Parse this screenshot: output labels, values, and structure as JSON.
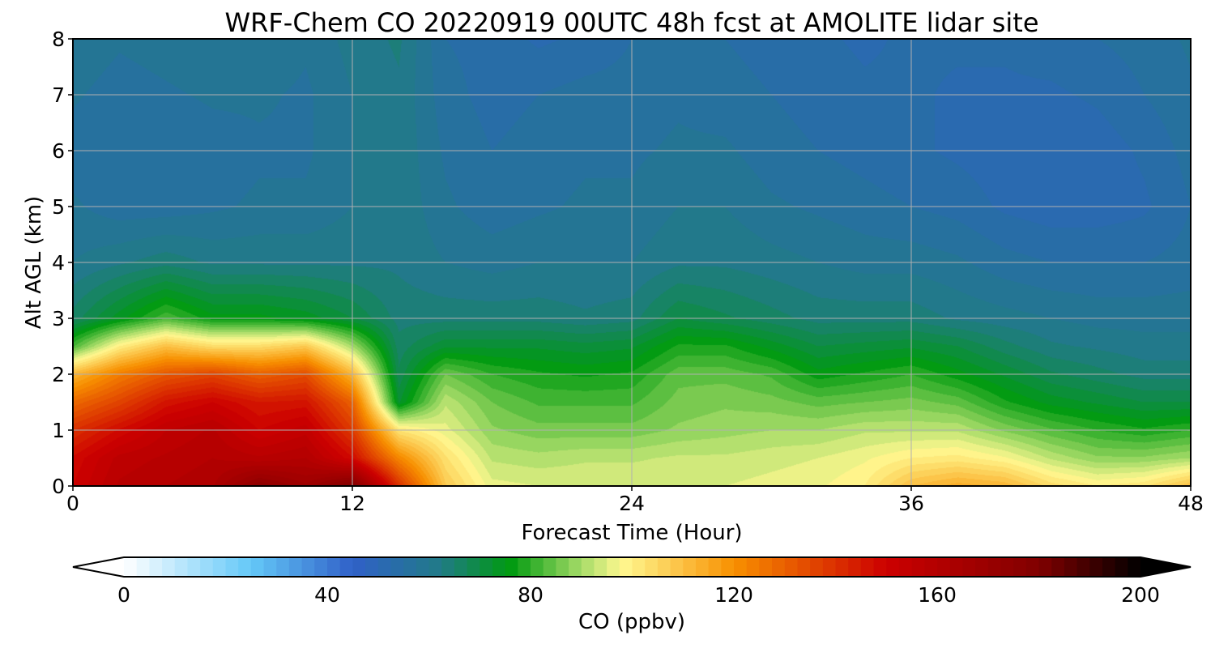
{
  "chart_data": {
    "type": "heatmap",
    "title": "WRF-Chem CO  20220919 00UTC 48h fcst at AMOLITE lidar site",
    "xlabel": "Forecast Time (Hour)",
    "ylabel": "Alt AGL (km)",
    "xlim": [
      0,
      48
    ],
    "ylim": [
      0,
      8
    ],
    "x_ticks": [
      0,
      12,
      24,
      36,
      48
    ],
    "y_ticks": [
      0,
      1,
      2,
      3,
      4,
      5,
      6,
      7,
      8
    ],
    "grid": true,
    "hours": [
      0,
      2,
      4,
      6,
      8,
      10,
      12,
      14,
      16,
      18,
      20,
      22,
      24,
      26,
      28,
      30,
      32,
      34,
      36,
      38,
      40,
      42,
      44,
      46,
      48
    ],
    "altitudes_km": [
      0,
      0.5,
      1,
      1.5,
      2,
      2.5,
      3,
      4,
      5,
      6,
      7,
      8
    ],
    "co_ppbv": [
      [
        150,
        158,
        160,
        162,
        175,
        168,
        180,
        140,
        108,
        96,
        95,
        95,
        95,
        95,
        95,
        96,
        97,
        100,
        110,
        114,
        112,
        104,
        100,
        102,
        110
      ],
      [
        148,
        156,
        158,
        160,
        158,
        160,
        148,
        122,
        103,
        92,
        91,
        92,
        92,
        93,
        93,
        94,
        95,
        97,
        100,
        101,
        98,
        92,
        88,
        88,
        90
      ],
      [
        140,
        148,
        155,
        158,
        150,
        154,
        138,
        102,
        96,
        88,
        86,
        86,
        86,
        88,
        89,
        90,
        90,
        92,
        92,
        92,
        87,
        83,
        80,
        78,
        80
      ],
      [
        128,
        136,
        146,
        150,
        145,
        146,
        130,
        72,
        92,
        85,
        82,
        82,
        82,
        86,
        87,
        86,
        84,
        85,
        86,
        84,
        78,
        74,
        72,
        70,
        70
      ],
      [
        112,
        124,
        132,
        136,
        130,
        134,
        112,
        68,
        85,
        80,
        78,
        77,
        78,
        84,
        84,
        82,
        76,
        78,
        80,
        76,
        72,
        68,
        66,
        64,
        64
      ],
      [
        82,
        100,
        110,
        104,
        104,
        108,
        90,
        66,
        72,
        72,
        72,
        71,
        72,
        78,
        78,
        74,
        70,
        71,
        72,
        70,
        66,
        63,
        62,
        61,
        61
      ],
      [
        66,
        74,
        82,
        76,
        76,
        74,
        70,
        64,
        64,
        64,
        64,
        63,
        64,
        70,
        68,
        66,
        64,
        64,
        64,
        62,
        61,
        60,
        59,
        59,
        59
      ],
      [
        60,
        62,
        64,
        62,
        62,
        62,
        62,
        62,
        60,
        59,
        60,
        60,
        60,
        62,
        62,
        61,
        60,
        59,
        59,
        58,
        56,
        55,
        55,
        55,
        56
      ],
      [
        58,
        56,
        56,
        57,
        58,
        58,
        60,
        62,
        58,
        56,
        57,
        58,
        58,
        60,
        60,
        58,
        57,
        56,
        55,
        54,
        52,
        51,
        51,
        52,
        55
      ],
      [
        56,
        55,
        55,
        56,
        57,
        57,
        60,
        62,
        57,
        55,
        56,
        57,
        57,
        58,
        58,
        56,
        55,
        54,
        53,
        52,
        51,
        50,
        51,
        53,
        56
      ],
      [
        58,
        56,
        57,
        58,
        58,
        57,
        60,
        62,
        56,
        54,
        55,
        56,
        56,
        57,
        56,
        55,
        54,
        53,
        53,
        52,
        52,
        52,
        53,
        55,
        57
      ],
      [
        60,
        58,
        59,
        60,
        60,
        58,
        61,
        63,
        55,
        54,
        52,
        53,
        55,
        56,
        55,
        54,
        53,
        52,
        53,
        53,
        53,
        54,
        55,
        56,
        58
      ]
    ],
    "colorbar": {
      "label": "CO  (ppbv)",
      "min": 0,
      "max": 200,
      "ticks": [
        0,
        40,
        80,
        120,
        160,
        200
      ],
      "extend": "both",
      "levels": 80,
      "stops": [
        {
          "value": 0,
          "color": "#ffffff"
        },
        {
          "value": 25,
          "color": "#64c8f8"
        },
        {
          "value": 45,
          "color": "#3060c8"
        },
        {
          "value": 62,
          "color": "#217a88"
        },
        {
          "value": 76,
          "color": "#009a10"
        },
        {
          "value": 90,
          "color": "#a6dc68"
        },
        {
          "value": 98,
          "color": "#fff890"
        },
        {
          "value": 120,
          "color": "#f89000"
        },
        {
          "value": 150,
          "color": "#cc0000"
        },
        {
          "value": 180,
          "color": "#800000"
        },
        {
          "value": 200,
          "color": "#000000"
        }
      ]
    }
  }
}
